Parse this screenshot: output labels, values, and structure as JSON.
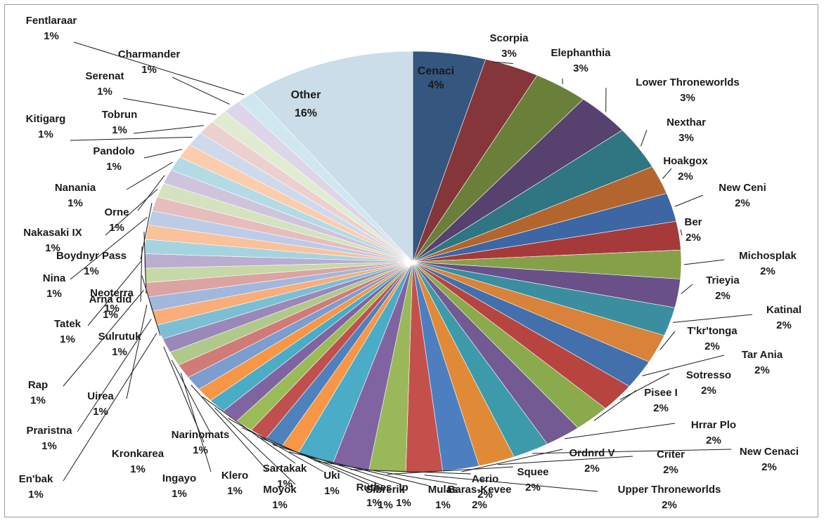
{
  "chart_data": {
    "type": "pie",
    "title": "",
    "legend": "none",
    "slices": [
      {
        "name": "Cenaci",
        "value": 4,
        "label": "4%",
        "color": "#34567f"
      },
      {
        "name": "Scorpia",
        "value": 3,
        "label": "3%",
        "color": "#85363a"
      },
      {
        "name": "Elephanthia",
        "value": 3,
        "label": "3%",
        "color": "#6a803a"
      },
      {
        "name": "Lower Throneworlds",
        "value": 3,
        "label": "3%",
        "color": "#57416e"
      },
      {
        "name": "Nexthar",
        "value": 3,
        "label": "3%",
        "color": "#2f7582"
      },
      {
        "name": "Hoakgox",
        "value": 2,
        "label": "2%",
        "color": "#b4652e"
      },
      {
        "name": "New Ceni",
        "value": 2,
        "label": "2%",
        "color": "#3d66a4"
      },
      {
        "name": "Ber",
        "value": 2,
        "label": "2%",
        "color": "#a63a3a"
      },
      {
        "name": "Michosplak",
        "value": 2,
        "label": "2%",
        "color": "#86a04a"
      },
      {
        "name": "Trieyia",
        "value": 2,
        "label": "2%",
        "color": "#6a5088"
      },
      {
        "name": "Katinal",
        "value": 2,
        "label": "2%",
        "color": "#3a8ea0"
      },
      {
        "name": "T'kr'tonga",
        "value": 2,
        "label": "2%",
        "color": "#d9823a"
      },
      {
        "name": "Tar Ania",
        "value": 2,
        "label": "2%",
        "color": "#4370ad"
      },
      {
        "name": "Sotresso",
        "value": 2,
        "label": "2%",
        "color": "#b7443f"
      },
      {
        "name": "Pisee I",
        "value": 2,
        "label": "2%",
        "color": "#8aaa4c"
      },
      {
        "name": "Hrrar Plo",
        "value": 2,
        "label": "2%",
        "color": "#735a92"
      },
      {
        "name": "New Cenaci",
        "value": 2,
        "label": "2%",
        "color": "#3d9aaa"
      },
      {
        "name": "Criter",
        "value": 2,
        "label": "2%",
        "color": "#e08a38"
      },
      {
        "name": "Ordnrd V",
        "value": 2,
        "label": "2%",
        "color": "#4d7fc0"
      },
      {
        "name": "Upper Throneworlds",
        "value": 2,
        "label": "2%",
        "color": "#c4504c"
      },
      {
        "name": "Squee",
        "value": 2,
        "label": "2%",
        "color": "#9ab85a"
      },
      {
        "name": "Aerio",
        "value": 2,
        "label": "2%",
        "color": "#8064a2"
      },
      {
        "name": "Baras-Kevee",
        "value": 2,
        "label": "2%",
        "color": "#4aacc6"
      },
      {
        "name": "Mulas",
        "value": 1,
        "label": "1%",
        "color": "#f79646"
      },
      {
        "name": "Ip",
        "value": 1,
        "label": "1%",
        "color": "#4f81bd"
      },
      {
        "name": "Sibrerik",
        "value": 1,
        "label": "1%",
        "color": "#c0504d"
      },
      {
        "name": "Ruthes",
        "value": 1,
        "label": "1%",
        "color": "#9bbb59"
      },
      {
        "name": "Uki",
        "value": 1,
        "label": "1%",
        "color": "#8064a2"
      },
      {
        "name": "Moyok",
        "value": 1,
        "label": "1%",
        "color": "#4bacc6"
      },
      {
        "name": "Sartakak",
        "value": 1,
        "label": "1%",
        "color": "#f79646"
      },
      {
        "name": "Klero",
        "value": 1,
        "label": "1%",
        "color": "#7b9dd0"
      },
      {
        "name": "Ingayo",
        "value": 1,
        "label": "1%",
        "color": "#d07b78"
      },
      {
        "name": "Narinomats",
        "value": 1,
        "label": "1%",
        "color": "#b0c98a"
      },
      {
        "name": "Kronkarea",
        "value": 1,
        "label": "1%",
        "color": "#9a88b8"
      },
      {
        "name": "En'bak",
        "value": 1,
        "label": "1%",
        "color": "#7cbfd4"
      },
      {
        "name": "Praristna",
        "value": 1,
        "label": "1%",
        "color": "#f8ad7a"
      },
      {
        "name": "Uirea",
        "value": 1,
        "label": "1%",
        "color": "#a2b7dc"
      },
      {
        "name": "Rap",
        "value": 1,
        "label": "1%",
        "color": "#dba3a2"
      },
      {
        "name": "Sulrutuk",
        "value": 1,
        "label": "1%",
        "color": "#c6d8a8"
      },
      {
        "name": "Tatek",
        "value": 1,
        "label": "1%",
        "color": "#b9add0"
      },
      {
        "name": "Arna did",
        "value": 1,
        "label": "1%",
        "color": "#a6d3e0"
      },
      {
        "name": "Neoterra",
        "value": 1,
        "label": "1%",
        "color": "#f9c19c"
      },
      {
        "name": "Nina",
        "value": 1,
        "label": "1%",
        "color": "#bccbe6"
      },
      {
        "name": "Boydnyr Pass",
        "value": 1,
        "label": "1%",
        "color": "#e4bdbc"
      },
      {
        "name": "Nakasaki IX",
        "value": 1,
        "label": "1%",
        "color": "#d5e2bf"
      },
      {
        "name": "Orne",
        "value": 1,
        "label": "1%",
        "color": "#cec5dd"
      },
      {
        "name": "Nanania",
        "value": 1,
        "label": "1%",
        "color": "#b3dbe6"
      },
      {
        "name": "Pandolo",
        "value": 1,
        "label": "1%",
        "color": "#fbcdad"
      },
      {
        "name": "Kitigarg",
        "value": 1,
        "label": "1%",
        "color": "#cfd9ec"
      },
      {
        "name": "Tobrun",
        "value": 1,
        "label": "1%",
        "color": "#ecd0cf"
      },
      {
        "name": "Serenat",
        "value": 1,
        "label": "1%",
        "color": "#e0ebd2"
      },
      {
        "name": "Charmander",
        "value": 1,
        "label": "1%",
        "color": "#ddd6e8"
      },
      {
        "name": "Fentlaraar",
        "value": 1,
        "label": "1%",
        "color": "#cfe7ee"
      },
      {
        "name": "Other",
        "value": 16,
        "label": "16%",
        "color": "#cadde8"
      }
    ]
  }
}
